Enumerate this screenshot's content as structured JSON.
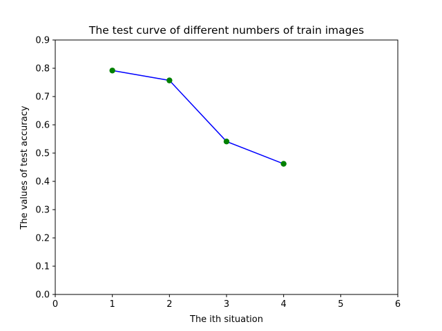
{
  "chart_data": {
    "type": "line",
    "title": "The test curve of different numbers of train images",
    "xlabel": "The ith situation",
    "ylabel": "The values of test accuracy",
    "xlim": [
      0,
      6
    ],
    "ylim": [
      0,
      0.9
    ],
    "xticks": [
      "0",
      "1",
      "2",
      "3",
      "4",
      "5",
      "6"
    ],
    "yticks": [
      "0.0",
      "0.1",
      "0.2",
      "0.3",
      "0.4",
      "0.5",
      "0.6",
      "0.7",
      "0.8",
      "0.9"
    ],
    "grid": false,
    "series": [
      {
        "x": [
          1,
          2,
          3,
          4
        ],
        "values": [
          0.792,
          0.757,
          0.541,
          0.462
        ],
        "line_color": "#0000ff",
        "marker": "circle",
        "marker_color": "#008000"
      }
    ]
  }
}
